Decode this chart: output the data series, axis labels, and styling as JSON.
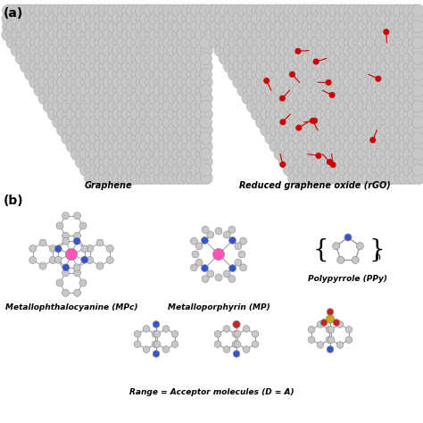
{
  "panel_a_label": "(a)",
  "panel_b_label": "(b)",
  "graphene_label": "Graphene",
  "rgo_label": "Reduced graphene oxide (rGO)",
  "mpc_label": "Metallophthalocyanine (MPc)",
  "mp_label": "Metalloporphyrin (MP)",
  "ppy_label": "Polypyrrole (PPy)",
  "acceptor_label": "Range = Acceptor molecules (D = A)",
  "bg_color": "#ffffff",
  "carbon_color": "#c8c8c8",
  "bond_color": "#999999",
  "carbon_edge_color": "#aaaaaa",
  "nitrogen_color": "#3355cc",
  "oxygen_color": "#cc2222",
  "sulfur_color": "#ccaa00",
  "metal_color": "#ff55bb",
  "red_dot_color": "#cc0000"
}
